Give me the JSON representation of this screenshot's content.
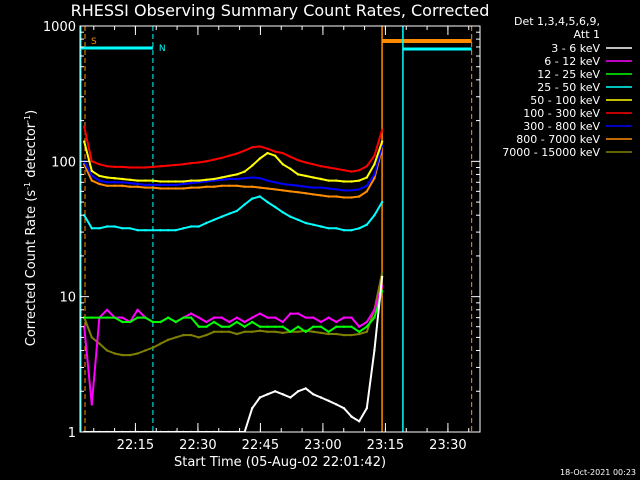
{
  "chart_data": {
    "type": "line",
    "title": "RHESSI Observing Summary Count Rates, Corrected",
    "xlabel": "Start Time (05-Aug-02 22:01:42)",
    "ylabel": "Corrected Count Rate (s⁻¹ detector⁻¹)",
    "ylabel_parts": {
      "prefix": "Corrected Count Rate (s",
      "exp1": "-1",
      "middle": " detector",
      "exp2": "-1",
      "suffix": ")"
    },
    "yscale": "log",
    "ylim": [
      1,
      1000
    ],
    "xlim_minutes": [
      0,
      96
    ],
    "y_ticks": [
      "1",
      "10",
      "100",
      "1000"
    ],
    "x_ticks": [
      {
        "minute": 13.3,
        "label": "22:15"
      },
      {
        "minute": 28.3,
        "label": "22:30"
      },
      {
        "minute": 43.3,
        "label": "22:45"
      },
      {
        "minute": 58.3,
        "label": "23:00"
      },
      {
        "minute": 73.3,
        "label": "23:15"
      },
      {
        "minute": 88.3,
        "label": "23:30"
      }
    ],
    "legend_header": [
      "Det 1,3,4,5,6,9,",
      "Att 1"
    ],
    "legend_position": "right",
    "series": [
      {
        "name": "3 - 6 keV",
        "color": "#ffffff",
        "values": [
          1,
          1,
          1,
          1,
          1,
          1,
          1,
          1,
          1,
          1,
          1,
          1,
          1,
          1,
          1,
          1,
          1,
          1,
          1,
          1,
          1,
          1,
          1.5,
          1.8,
          1.9,
          2,
          1.9,
          1.8,
          2,
          2.1,
          1.9,
          1.8,
          1.7,
          1.6,
          1.5,
          1.3,
          1.2,
          1.5,
          4,
          14
        ]
      },
      {
        "name": "6 - 12 keV",
        "color": "#ff00ff",
        "values": [
          6,
          1.6,
          7,
          8,
          7,
          7,
          6.5,
          8,
          7,
          6.5,
          6.5,
          7,
          6.5,
          7,
          7.5,
          7,
          6.5,
          7,
          7,
          6.5,
          7,
          6.5,
          7,
          7.5,
          7,
          7,
          6.5,
          7.5,
          7.5,
          7,
          7,
          6.5,
          7,
          6.5,
          7,
          7,
          6,
          6.5,
          8,
          12
        ]
      },
      {
        "name": "12 - 25 keV",
        "color": "#00ff00",
        "values": [
          7,
          7,
          7,
          7,
          7,
          6.5,
          6.5,
          7,
          7,
          6.5,
          6.5,
          7,
          6.5,
          7,
          7,
          6,
          6,
          6.5,
          6,
          6,
          6.5,
          6,
          6.5,
          6,
          6,
          6,
          6,
          5.5,
          6,
          5.5,
          6,
          6,
          5.5,
          6,
          6,
          6,
          5.5,
          6,
          7,
          11
        ]
      },
      {
        "name": "25 - 50 keV",
        "color": "#00ffff",
        "values": [
          40,
          32,
          32,
          33,
          33,
          32,
          32,
          31,
          31,
          31,
          31,
          31,
          31,
          32,
          33,
          33,
          35,
          37,
          39,
          41,
          43,
          48,
          53,
          55,
          50,
          46,
          42,
          39,
          37,
          35,
          34,
          33,
          32,
          32,
          31,
          31,
          32,
          34,
          40,
          50
        ]
      },
      {
        "name": "50 - 100 keV",
        "color": "#ffff00",
        "values": [
          140,
          85,
          78,
          76,
          75,
          74,
          73,
          72,
          72,
          72,
          71,
          71,
          71,
          71,
          72,
          72,
          73,
          74,
          76,
          78,
          80,
          84,
          93,
          105,
          115,
          110,
          95,
          88,
          80,
          78,
          76,
          74,
          72,
          72,
          71,
          71,
          72,
          76,
          95,
          140
        ]
      },
      {
        "name": "100 - 300 keV",
        "color": "#ff0000",
        "values": [
          180,
          100,
          95,
          92,
          91,
          91,
          90,
          90,
          90,
          91,
          92,
          93,
          94,
          95,
          97,
          98,
          100,
          103,
          106,
          110,
          114,
          120,
          127,
          129,
          124,
          118,
          115,
          108,
          102,
          98,
          95,
          92,
          90,
          88,
          86,
          84,
          86,
          92,
          110,
          170
        ]
      },
      {
        "name": "300 - 800 keV",
        "color": "#0000ff",
        "values": [
          100,
          78,
          72,
          70,
          70,
          70,
          69,
          68,
          67,
          67,
          67,
          67,
          67,
          68,
          69,
          70,
          71,
          72,
          73,
          74,
          74,
          75,
          76,
          75,
          72,
          70,
          68,
          67,
          66,
          65,
          64,
          64,
          63,
          62,
          61,
          61,
          62,
          66,
          80,
          130
        ]
      },
      {
        "name": "800 - 7000 keV",
        "color": "#ff8c00",
        "values": [
          95,
          72,
          68,
          66,
          66,
          66,
          65,
          65,
          64,
          64,
          63,
          63,
          63,
          63,
          64,
          64,
          65,
          65,
          66,
          66,
          66,
          65,
          65,
          64,
          63,
          62,
          61,
          60,
          59,
          58,
          57,
          56,
          55,
          55,
          54,
          54,
          55,
          60,
          75,
          125
        ]
      },
      {
        "name": "7000 - 15000 keV",
        "color": "#808000",
        "values": [
          7,
          5,
          4.5,
          4,
          3.8,
          3.7,
          3.7,
          3.8,
          4,
          4.2,
          4.5,
          4.8,
          5,
          5.2,
          5.2,
          5,
          5.2,
          5.5,
          5.5,
          5.5,
          5.3,
          5.5,
          5.5,
          5.6,
          5.5,
          5.5,
          5.4,
          5.5,
          5.5,
          5.6,
          5.5,
          5.4,
          5.3,
          5.3,
          5.2,
          5.2,
          5.3,
          5.5,
          8,
          15
        ]
      }
    ],
    "state_bars": [
      {
        "label": "S",
        "color": "#ff8c00"
      },
      {
        "label": "N",
        "color": "#00ffff"
      }
    ],
    "footer_timestamp": "18-Oct-2021 00:23"
  }
}
